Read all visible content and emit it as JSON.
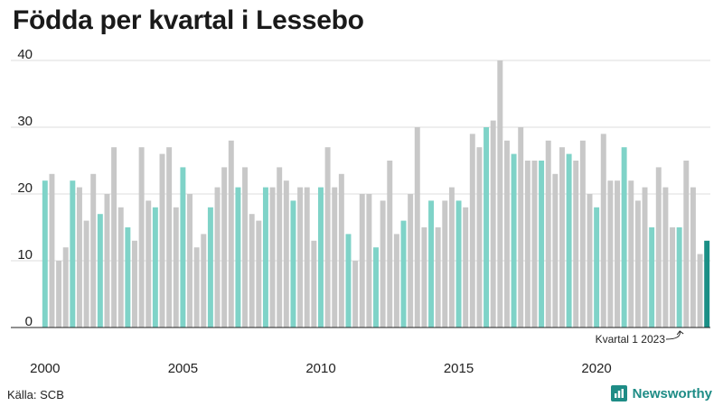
{
  "title": "Födda per kvartal i Lessebo",
  "source": "Källa: SCB",
  "brand": {
    "name": "Newsworthy",
    "icon": "newsworthy-logo-icon"
  },
  "colors": {
    "q1": "#7fd3c8",
    "other": "#c8c8c8",
    "latest": "#1a8f86",
    "grid": "#dcdcdc",
    "axis": "#222222"
  },
  "chart_data": {
    "type": "bar",
    "title": "Födda per kvartal i Lessebo",
    "xlabel": "",
    "ylabel": "",
    "ylim": [
      0,
      40
    ],
    "yticks": [
      0,
      10,
      20,
      30,
      40
    ],
    "xtick_labels": [
      "2000",
      "2005",
      "2010",
      "2015",
      "2020"
    ],
    "grid": true,
    "start_year": 2000,
    "values": [
      22,
      23,
      10,
      12,
      22,
      21,
      16,
      23,
      17,
      20,
      27,
      18,
      15,
      13,
      27,
      19,
      18,
      26,
      27,
      18,
      24,
      20,
      12,
      14,
      18,
      21,
      24,
      28,
      21,
      24,
      17,
      16,
      21,
      21,
      24,
      22,
      19,
      21,
      21,
      13,
      21,
      27,
      21,
      23,
      14,
      10,
      20,
      20,
      12,
      19,
      25,
      14,
      16,
      20,
      30,
      15,
      19,
      15,
      19,
      21,
      19,
      18,
      29,
      27,
      30,
      31,
      40,
      28,
      26,
      30,
      25,
      25,
      25,
      28,
      23,
      27,
      26,
      25,
      28,
      20,
      18,
      29,
      22,
      22,
      27,
      22,
      19,
      21,
      15,
      24,
      21,
      15,
      15,
      25,
      21,
      11,
      13
    ],
    "annotation": "Kvartal 1 2023"
  }
}
